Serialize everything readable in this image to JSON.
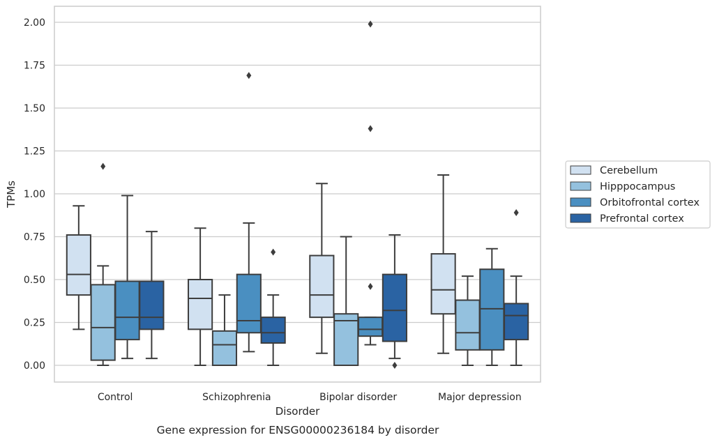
{
  "chart_data": {
    "type": "box",
    "title": "",
    "caption": "Gene expression for ENSG00000236184 by disorder",
    "xlabel": "Disorder",
    "ylabel": "TPMs",
    "ylim": [
      -0.1,
      2.1
    ],
    "yticks": [
      0.0,
      0.25,
      0.5,
      0.75,
      1.0,
      1.25,
      1.5,
      1.75,
      2.0
    ],
    "ytick_labels": [
      "0.00",
      "0.25",
      "0.50",
      "0.75",
      "1.00",
      "1.25",
      "1.50",
      "1.75",
      "2.00"
    ],
    "grid": "y",
    "legend_position": "right",
    "categories": [
      "Control",
      "Schizophrenia",
      "Bipolar disorder",
      "Major depression"
    ],
    "series": [
      {
        "name": "Cerebellum",
        "color": "#d1e1f1",
        "boxes": [
          {
            "min": 0.21,
            "q1": 0.41,
            "median": 0.53,
            "q3": 0.76,
            "max": 0.93,
            "outliers": []
          },
          {
            "min": 0.0,
            "q1": 0.21,
            "median": 0.39,
            "q3": 0.5,
            "max": 0.8,
            "outliers": []
          },
          {
            "min": 0.07,
            "q1": 0.28,
            "median": 0.41,
            "q3": 0.64,
            "max": 1.06,
            "outliers": []
          },
          {
            "min": 0.07,
            "q1": 0.3,
            "median": 0.44,
            "q3": 0.65,
            "max": 1.11,
            "outliers": []
          }
        ]
      },
      {
        "name": "Hipppocampus",
        "color": "#94c1de",
        "boxes": [
          {
            "min": 0.0,
            "q1": 0.03,
            "median": 0.22,
            "q3": 0.47,
            "max": 0.58,
            "outliers": [
              1.16
            ]
          },
          {
            "min": 0.0,
            "q1": 0.0,
            "median": 0.12,
            "q3": 0.2,
            "max": 0.41,
            "outliers": []
          },
          {
            "min": 0.0,
            "q1": 0.0,
            "median": 0.26,
            "q3": 0.3,
            "max": 0.75,
            "outliers": []
          },
          {
            "min": 0.0,
            "q1": 0.09,
            "median": 0.19,
            "q3": 0.38,
            "max": 0.52,
            "outliers": []
          }
        ]
      },
      {
        "name": "Orbitofrontal cortex",
        "color": "#4a8fc1",
        "boxes": [
          {
            "min": 0.04,
            "q1": 0.15,
            "median": 0.28,
            "q3": 0.49,
            "max": 0.99,
            "outliers": []
          },
          {
            "min": 0.08,
            "q1": 0.19,
            "median": 0.26,
            "q3": 0.53,
            "max": 0.83,
            "outliers": [
              1.69
            ]
          },
          {
            "min": 0.12,
            "q1": 0.17,
            "median": 0.21,
            "q3": 0.28,
            "max": 0.28,
            "outliers": [
              0.46,
              1.38,
              1.99
            ]
          },
          {
            "min": 0.0,
            "q1": 0.09,
            "median": 0.33,
            "q3": 0.56,
            "max": 0.68,
            "outliers": []
          }
        ]
      },
      {
        "name": "Prefrontal cortex",
        "color": "#2a63a3",
        "boxes": [
          {
            "min": 0.04,
            "q1": 0.21,
            "median": 0.28,
            "q3": 0.49,
            "max": 0.78,
            "outliers": []
          },
          {
            "min": 0.0,
            "q1": 0.13,
            "median": 0.19,
            "q3": 0.28,
            "max": 0.41,
            "outliers": [
              0.66
            ]
          },
          {
            "min": 0.04,
            "q1": 0.14,
            "median": 0.32,
            "q3": 0.53,
            "max": 0.76,
            "outliers": [
              0.0
            ]
          },
          {
            "min": 0.0,
            "q1": 0.15,
            "median": 0.29,
            "q3": 0.36,
            "max": 0.52,
            "outliers": [
              0.89
            ]
          }
        ]
      }
    ]
  }
}
